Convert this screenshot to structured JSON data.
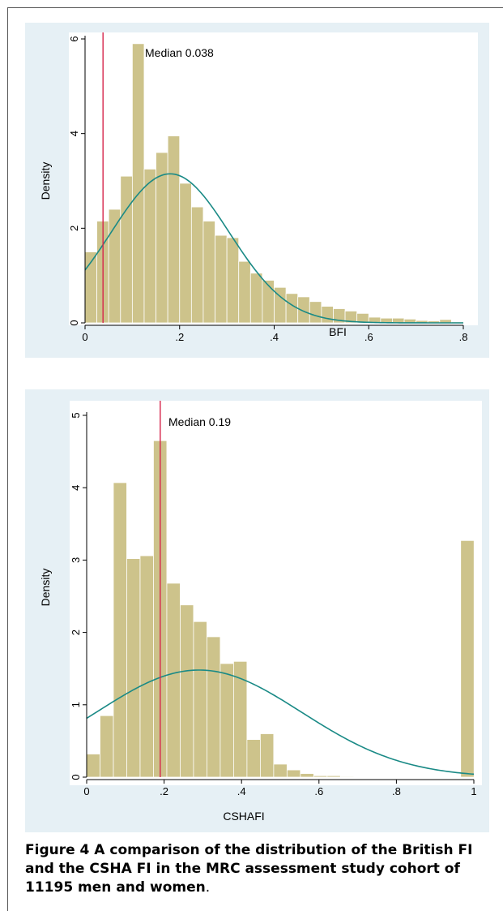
{
  "chart_data": [
    {
      "type": "bar",
      "kind": "histogram",
      "xlabel": "BFI",
      "ylabel": "Density",
      "xlim": [
        0,
        0.8
      ],
      "ylim": [
        0,
        6
      ],
      "xticks": [
        0,
        0.2,
        0.4,
        0.6,
        0.8
      ],
      "xtick_labels": [
        "0",
        ".2",
        ".4",
        ".6",
        ".8"
      ],
      "yticks": [
        0,
        2,
        4,
        6
      ],
      "ytick_labels": [
        "0",
        "2",
        "4",
        "6"
      ],
      "bin_width": 0.025,
      "bin_start": 0,
      "values": [
        1.5,
        2.15,
        2.4,
        3.1,
        5.9,
        3.25,
        3.6,
        3.95,
        2.95,
        2.45,
        2.15,
        1.85,
        1.8,
        1.3,
        1.05,
        0.9,
        0.75,
        0.62,
        0.55,
        0.45,
        0.35,
        0.3,
        0.25,
        0.2,
        0.12,
        0.1,
        0.1,
        0.08,
        0.05,
        0.04,
        0.07,
        0.02
      ],
      "normal_curve": {
        "mean": 0.18,
        "sd": 0.125,
        "peak": 3.15
      },
      "median": {
        "value": 0.038,
        "label": "Median 0.038"
      },
      "colors": {
        "bars": "#cdc38b",
        "curve": "#1a8a86",
        "median": "#d6244a",
        "panel": "#e6f0f5"
      }
    },
    {
      "type": "bar",
      "kind": "histogram",
      "xlabel": "CSHAFI",
      "ylabel": "Density",
      "xlim": [
        0,
        1
      ],
      "ylim": [
        0,
        5
      ],
      "xticks": [
        0,
        0.2,
        0.4,
        0.6,
        0.8,
        1
      ],
      "xtick_labels": [
        "0",
        ".2",
        ".4",
        ".6",
        ".8",
        "1"
      ],
      "yticks": [
        0,
        1,
        2,
        3,
        4,
        5
      ],
      "ytick_labels": [
        "0",
        "1",
        "2",
        "3",
        "4",
        "5"
      ],
      "bin_width": 0.0345,
      "bin_start": 0,
      "values": [
        0.32,
        0.85,
        4.07,
        3.02,
        3.06,
        4.65,
        2.68,
        2.38,
        2.15,
        1.94,
        1.57,
        1.6,
        0.52,
        0.6,
        0.18,
        0.1,
        0.05,
        0.02,
        0.02,
        0.01
      ],
      "last_bar": {
        "x": 0.966,
        "value": 3.27
      },
      "normal_curve": {
        "mean": 0.29,
        "sd": 0.265,
        "peak": 1.48
      },
      "median": {
        "value": 0.19,
        "label": "Median 0.19"
      },
      "colors": {
        "bars": "#cdc38b",
        "curve": "#1a8a86",
        "median": "#d6244a",
        "panel": "#e6f0f5"
      }
    }
  ],
  "caption": {
    "figure_label": "Figure 4",
    "text": " A comparison of the distribution of the British FI and the CSHA FI in the MRC assessment study cohort of 11195 men and women",
    "end": "."
  }
}
